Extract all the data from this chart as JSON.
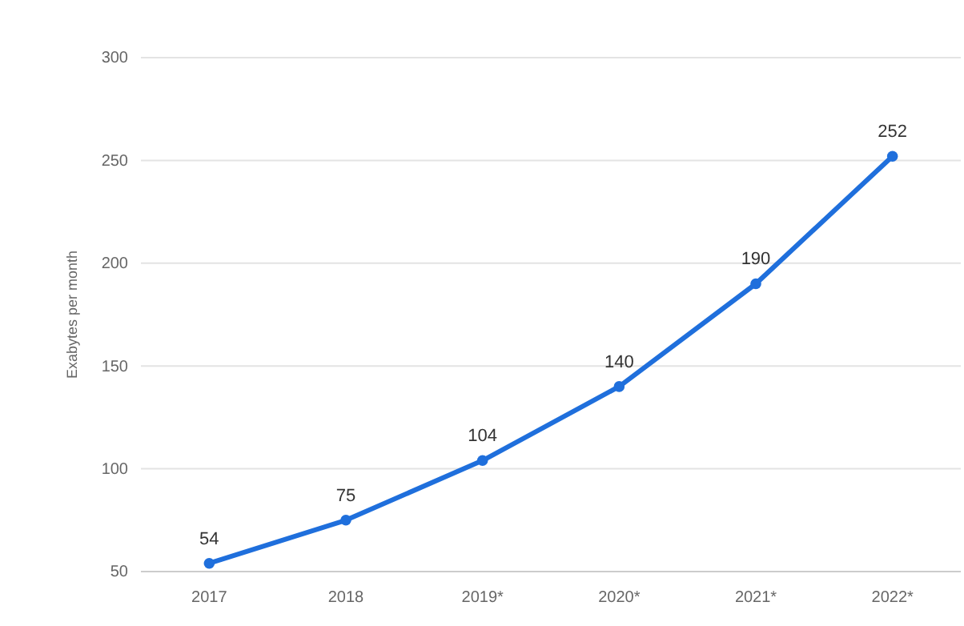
{
  "chart_data": {
    "type": "line",
    "ylabel": "Exabytes per month",
    "categories": [
      "2017",
      "2018",
      "2019*",
      "2020*",
      "2021*",
      "2022*"
    ],
    "series": [
      {
        "color": "#1f6fdc",
        "values": [
          54,
          75,
          104,
          140,
          190,
          252
        ]
      }
    ],
    "ylim": [
      50,
      300
    ],
    "yticks": [
      50,
      100,
      150,
      200,
      250,
      300
    ],
    "grid": "y",
    "marker": "circle",
    "line_style": "solid",
    "data_labels": true
  }
}
